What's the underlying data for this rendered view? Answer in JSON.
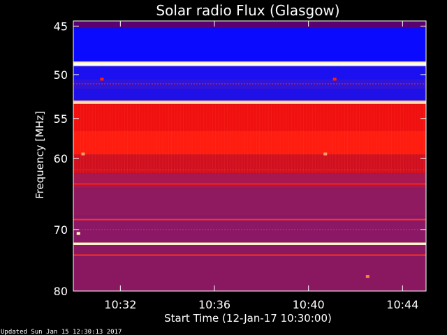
{
  "chart_data": {
    "type": "heatmap",
    "title": "Solar radio Flux (Glasgow)",
    "xlabel": "Start Time (12-Jan-17 10:30:00)",
    "ylabel": "Frequency [MHz]",
    "x_ticks": [
      {
        "label": "10:32",
        "minute": 2
      },
      {
        "label": "10:36",
        "minute": 6
      },
      {
        "label": "10:40",
        "minute": 10
      },
      {
        "label": "10:44",
        "minute": 14
      }
    ],
    "y_ticks": [
      45,
      50,
      55,
      60,
      70,
      80
    ],
    "xlim_minutes": [
      0,
      15
    ],
    "ylim": [
      44.5,
      80
    ],
    "y_scale": "log",
    "colormap": [
      "#08006e",
      "#0000ff",
      "#5a0096",
      "#c80000",
      "#ff1e00",
      "#ff6a1e",
      "#ffe6b4"
    ],
    "bands": [
      {
        "from": 44.5,
        "to": 45.2,
        "color": "#5a0070"
      },
      {
        "from": 45.2,
        "to": 48.6,
        "color": "#0a0aff"
      },
      {
        "from": 48.6,
        "to": 49.1,
        "color": "#ffe6b0"
      },
      {
        "from": 49.1,
        "to": 50.5,
        "color": "#1a10f0"
      },
      {
        "from": 50.5,
        "to": 51.6,
        "color": "#3015d8"
      },
      {
        "from": 51.6,
        "to": 52.9,
        "color": "#2010e8"
      },
      {
        "from": 52.9,
        "to": 53.3,
        "color": "#ffc080"
      },
      {
        "from": 53.3,
        "to": 56.5,
        "color": "#f01010"
      },
      {
        "from": 56.5,
        "to": 59.5,
        "color": "#ff1c10"
      },
      {
        "from": 59.5,
        "to": 62.0,
        "color": "#d01020"
      },
      {
        "from": 62.0,
        "to": 64.0,
        "color": "#a81850"
      },
      {
        "from": 64.0,
        "to": 68.0,
        "color": "#901a60"
      },
      {
        "from": 68.0,
        "to": 72.0,
        "color": "#8a1866"
      },
      {
        "from": 72.0,
        "to": 72.4,
        "color": "#ffe0a0"
      },
      {
        "from": 72.4,
        "to": 80.0,
        "color": "#8a1860"
      }
    ],
    "lines": [
      {
        "freq": 48.85,
        "color": "#ffffff",
        "width": 3
      },
      {
        "freq": 53.1,
        "color": "#ffe0b0",
        "width": 2
      },
      {
        "freq": 72.2,
        "color": "#ffffff",
        "width": 2
      },
      {
        "freq": 51.0,
        "color": "#ff3000",
        "width": 1
      },
      {
        "freq": 61.5,
        "color": "#ff3020",
        "width": 1
      },
      {
        "freq": 63.4,
        "color": "#ff2010",
        "width": 2
      },
      {
        "freq": 68.5,
        "color": "#ff3020",
        "width": 2
      },
      {
        "freq": 70.0,
        "color": "#ff3020",
        "width": 1
      },
      {
        "freq": 74.0,
        "color": "#ff3020",
        "width": 2
      }
    ],
    "spots": [
      {
        "minute": 1.2,
        "freq": 50.5,
        "color": "#ff2000"
      },
      {
        "minute": 11.1,
        "freq": 50.5,
        "color": "#ff2000"
      },
      {
        "minute": 0.4,
        "freq": 59.4,
        "color": "#ffa060"
      },
      {
        "minute": 10.7,
        "freq": 59.4,
        "color": "#ffa060"
      },
      {
        "minute": 0.2,
        "freq": 70.6,
        "color": "#ffffc0"
      },
      {
        "minute": 12.5,
        "freq": 77.5,
        "color": "#ff8040"
      }
    ]
  },
  "footer": "Updated Sun Jan 15 12:30:13 2017"
}
